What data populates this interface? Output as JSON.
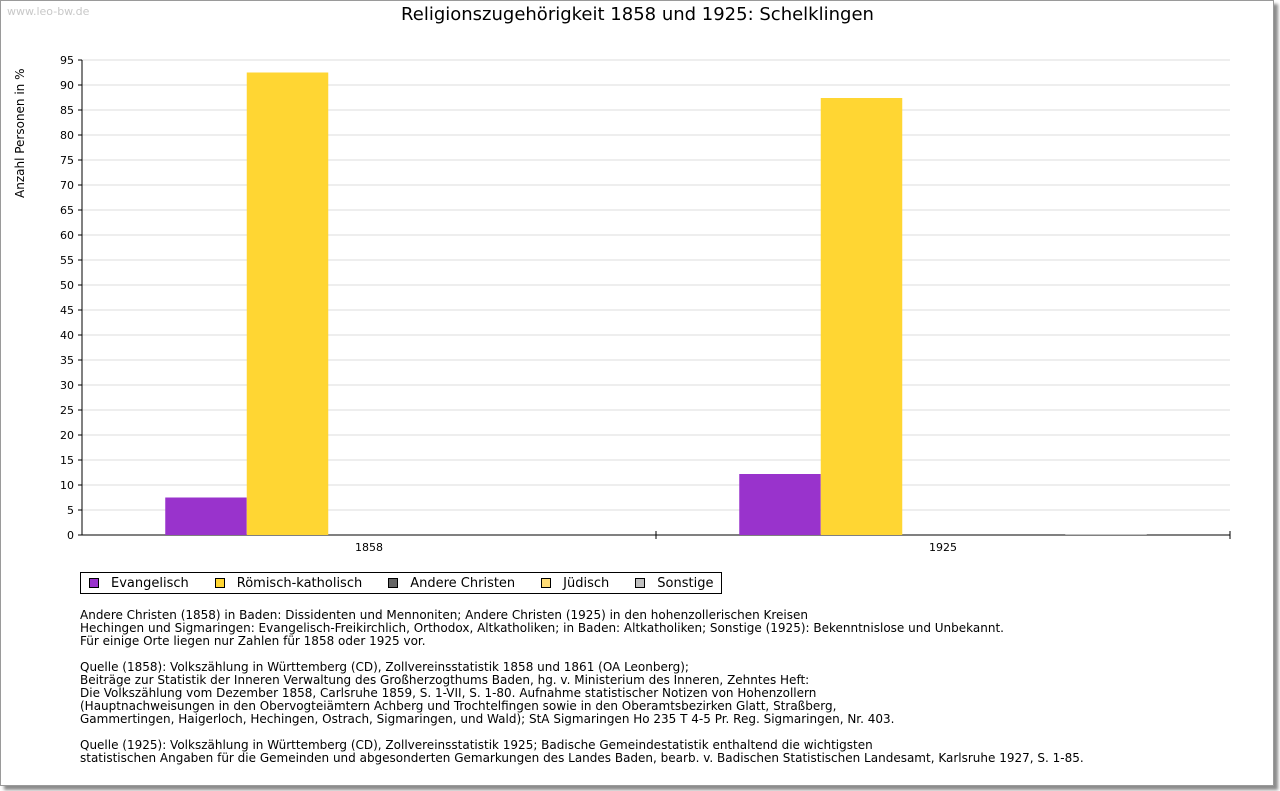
{
  "watermark": "www.leo-bw.de",
  "chart_data": {
    "type": "bar",
    "title": "Religionszugehörigkeit 1858 und 1925: Schelklingen",
    "xlabel": "",
    "ylabel": "Anzahl Personen in %",
    "ylim": [
      0,
      95
    ],
    "yticks": [
      "0",
      "5",
      "10",
      "15",
      "20",
      "25",
      "30",
      "35",
      "40",
      "45",
      "50",
      "55",
      "60",
      "65",
      "70",
      "75",
      "80",
      "85",
      "90",
      "95"
    ],
    "grid": true,
    "legend_position": "bottom",
    "categories": [
      "1858",
      "1925"
    ],
    "series": [
      {
        "name": "Evangelisch",
        "color": "#9933cc",
        "values": [
          7.5,
          12.2
        ]
      },
      {
        "name": "Römisch-katholisch",
        "color": "#ffd633",
        "values": [
          92.5,
          87.4
        ]
      },
      {
        "name": "Andere Christen",
        "color": "#666666",
        "values": [
          0,
          0
        ]
      },
      {
        "name": "Jüdisch",
        "color": "#ffdd77",
        "values": [
          0,
          0
        ]
      },
      {
        "name": "Sonstige",
        "color": "#c0c0c0",
        "values": [
          0,
          0.2
        ]
      }
    ]
  },
  "notes": [
    [
      "Andere Christen (1858) in Baden: Dissidenten und Mennoniten; Andere Christen (1925) in den hohenzollerischen Kreisen",
      "Hechingen und Sigmaringen: Evangelisch-Freikirchlich, Orthodox, Altkatholiken; in Baden: Altkatholiken; Sonstige (1925): Bekenntnislose und Unbekannt.",
      "Für einige Orte liegen nur Zahlen für 1858 oder 1925 vor."
    ],
    [
      "Quelle (1858): Volkszählung in Württemberg (CD), Zollvereinsstatistik 1858 und 1861 (OA Leonberg);",
      "Beiträge zur Statistik der Inneren Verwaltung des Großherzogthums Baden, hg. v. Ministerium des Inneren, Zehntes Heft:",
      "Die Volkszählung vom Dezember 1858, Carlsruhe 1859, S. 1-VII, S. 1-80. Aufnahme statistischer Notizen von Hohenzollern",
      "(Hauptnachweisungen in den Obervogteiämtern Achberg und Trochtelfingen sowie in den Oberamtsbezirken Glatt, Straßberg,",
      "Gammertingen, Haigerloch, Hechingen, Ostrach, Sigmaringen, und Wald); StA Sigmaringen Ho 235 T 4-5 Pr. Reg. Sigmaringen, Nr. 403."
    ],
    [
      "Quelle (1925): Volkszählung in Württemberg (CD), Zollvereinsstatistik 1925; Badische Gemeindestatistik enthaltend die wichtigsten",
      "statistischen Angaben für die Gemeinden und abgesonderten Gemarkungen des Landes Baden, bearb. v. Badischen Statistischen Landesamt, Karlsruhe 1927, S. 1-85."
    ]
  ]
}
